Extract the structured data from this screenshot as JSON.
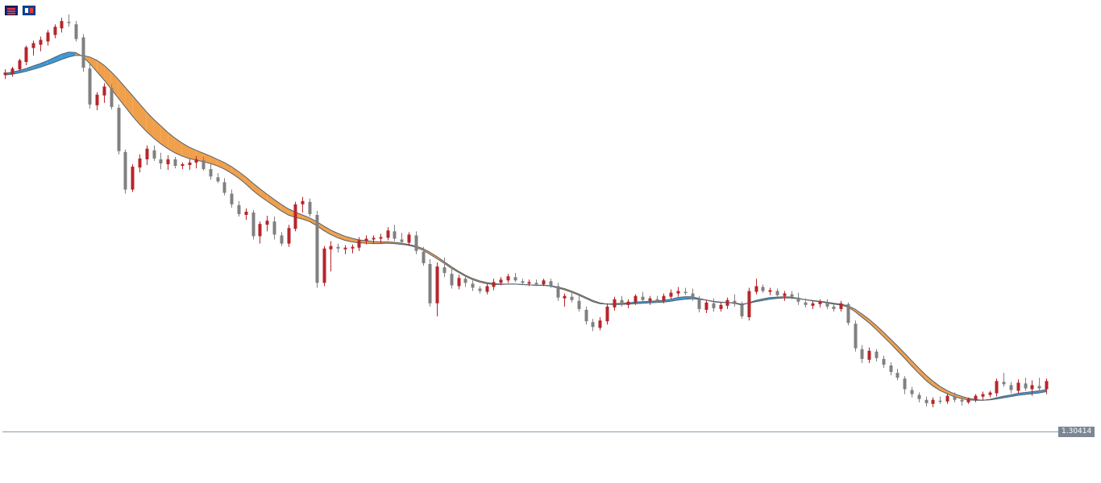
{
  "toolbar": {
    "icons": [
      {
        "name": "indicator-list-icon",
        "color": "#1a237e"
      },
      {
        "name": "template-icon",
        "color": "#0d47a1"
      }
    ]
  },
  "chart_data": {
    "type": "candlestick",
    "title": "",
    "xlabel": "",
    "ylabel": "",
    "ylim": [
      1.29,
      1.4
    ],
    "grid": false,
    "current_price": 1.30414,
    "current_price_label": "1.30414",
    "colors": {
      "bullish": "#b5262b",
      "bearish": "#808080",
      "ma_fast": "#3a9ad9",
      "ma_slow": "#f0a04b",
      "ma_line": "#56606a",
      "price_line": "#8a9ba8"
    },
    "candles": [
      [
        1.3912,
        1.3926,
        1.3902,
        1.3918
      ],
      [
        1.3914,
        1.3932,
        1.3908,
        1.3928
      ],
      [
        1.3926,
        1.3952,
        1.392,
        1.3948
      ],
      [
        1.3944,
        1.3984,
        1.3936,
        1.398
      ],
      [
        1.3978,
        1.3996,
        1.396,
        1.399
      ],
      [
        1.3986,
        1.4006,
        1.397,
        1.3998
      ],
      [
        1.3994,
        1.4022,
        1.3984,
        1.4016
      ],
      [
        1.401,
        1.4036,
        1.4002,
        1.403
      ],
      [
        1.4026,
        1.4052,
        1.4016,
        1.4044
      ],
      [
        1.4042,
        1.406,
        1.403,
        1.404
      ],
      [
        1.4036,
        1.4044,
        1.3994,
        1.4
      ],
      [
        1.4004,
        1.4012,
        1.392,
        1.393
      ],
      [
        1.3928,
        1.3942,
        1.383,
        1.384
      ],
      [
        1.3838,
        1.387,
        1.3826,
        1.3864
      ],
      [
        1.3862,
        1.3892,
        1.3844,
        1.3884
      ],
      [
        1.388,
        1.389,
        1.3828,
        1.3834
      ],
      [
        1.3832,
        1.384,
        1.3718,
        1.3726
      ],
      [
        1.3724,
        1.373,
        1.3622,
        1.3632
      ],
      [
        1.3632,
        1.3694,
        1.3626,
        1.3688
      ],
      [
        1.3686,
        1.3718,
        1.3674,
        1.3708
      ],
      [
        1.3706,
        1.374,
        1.3692,
        1.3732
      ],
      [
        1.3728,
        1.374,
        1.3702,
        1.3708
      ],
      [
        1.3706,
        1.3722,
        1.3682,
        1.3696
      ],
      [
        1.3694,
        1.3716,
        1.368,
        1.3706
      ],
      [
        1.3706,
        1.3712,
        1.3684,
        1.369
      ],
      [
        1.369,
        1.3698,
        1.3682,
        1.3694
      ],
      [
        1.3692,
        1.3706,
        1.368,
        1.3698
      ],
      [
        1.3698,
        1.3714,
        1.3684,
        1.3706
      ],
      [
        1.3704,
        1.3712,
        1.3678,
        1.3682
      ],
      [
        1.3682,
        1.3696,
        1.3656,
        1.3664
      ],
      [
        1.3662,
        1.3672,
        1.3648,
        1.3652
      ],
      [
        1.365,
        1.366,
        1.3618,
        1.3624
      ],
      [
        1.3622,
        1.3632,
        1.3588,
        1.3596
      ],
      [
        1.3594,
        1.3604,
        1.3566,
        1.3572
      ],
      [
        1.357,
        1.3586,
        1.3558,
        1.3578
      ],
      [
        1.3576,
        1.3582,
        1.351,
        1.3518
      ],
      [
        1.3518,
        1.3554,
        1.35,
        1.3548
      ],
      [
        1.3546,
        1.3568,
        1.353,
        1.3556
      ],
      [
        1.3554,
        1.3566,
        1.351,
        1.3522
      ],
      [
        1.352,
        1.3528,
        1.3494,
        1.35
      ],
      [
        1.35,
        1.3546,
        1.3492,
        1.3538
      ],
      [
        1.3536,
        1.3602,
        1.353,
        1.3596
      ],
      [
        1.3596,
        1.3614,
        1.3576,
        1.3604
      ],
      [
        1.3602,
        1.361,
        1.3566,
        1.3572
      ],
      [
        1.357,
        1.358,
        1.3392,
        1.3404
      ],
      [
        1.3404,
        1.3494,
        1.3396,
        1.3488
      ],
      [
        1.3486,
        1.3506,
        1.3432,
        1.3494
      ],
      [
        1.3492,
        1.35,
        1.3478,
        1.3488
      ],
      [
        1.3486,
        1.3496,
        1.3474,
        1.349
      ],
      [
        1.3488,
        1.3498,
        1.3476,
        1.3492
      ],
      [
        1.349,
        1.3516,
        1.3482,
        1.3508
      ],
      [
        1.3506,
        1.352,
        1.3498,
        1.3512
      ],
      [
        1.351,
        1.352,
        1.35,
        1.3514
      ],
      [
        1.3512,
        1.3524,
        1.35,
        1.3516
      ],
      [
        1.3514,
        1.354,
        1.3508,
        1.3532
      ],
      [
        1.353,
        1.3546,
        1.3506,
        1.3512
      ],
      [
        1.351,
        1.3526,
        1.3498,
        1.3504
      ],
      [
        1.3502,
        1.3528,
        1.3494,
        1.3522
      ],
      [
        1.352,
        1.353,
        1.3474,
        1.3482
      ],
      [
        1.348,
        1.3492,
        1.3446,
        1.3452
      ],
      [
        1.345,
        1.3462,
        1.3346,
        1.3354
      ],
      [
        1.3354,
        1.3454,
        1.3322,
        1.3444
      ],
      [
        1.3442,
        1.3466,
        1.3418,
        1.3428
      ],
      [
        1.3426,
        1.344,
        1.339,
        1.3398
      ],
      [
        1.3396,
        1.3424,
        1.3388,
        1.3416
      ],
      [
        1.3414,
        1.3422,
        1.3394,
        1.3404
      ],
      [
        1.3402,
        1.341,
        1.3384,
        1.3392
      ],
      [
        1.339,
        1.3396,
        1.3378,
        1.3384
      ],
      [
        1.3382,
        1.3402,
        1.3376,
        1.3396
      ],
      [
        1.3394,
        1.3414,
        1.3386,
        1.3406
      ],
      [
        1.3404,
        1.3418,
        1.3398,
        1.3412
      ],
      [
        1.341,
        1.3426,
        1.3404,
        1.342
      ],
      [
        1.3418,
        1.3428,
        1.3406,
        1.341
      ],
      [
        1.3408,
        1.3414,
        1.3398,
        1.3404
      ],
      [
        1.3402,
        1.3412,
        1.3396,
        1.3406
      ],
      [
        1.3404,
        1.3412,
        1.3396,
        1.34
      ],
      [
        1.34,
        1.3414,
        1.3396,
        1.341
      ],
      [
        1.3408,
        1.3414,
        1.3392,
        1.3396
      ],
      [
        1.3396,
        1.3404,
        1.336,
        1.3368
      ],
      [
        1.3366,
        1.3378,
        1.3346,
        1.3372
      ],
      [
        1.337,
        1.338,
        1.3356,
        1.3362
      ],
      [
        1.336,
        1.3374,
        1.3334,
        1.334
      ],
      [
        1.3338,
        1.3346,
        1.3302,
        1.331
      ],
      [
        1.3308,
        1.3316,
        1.3286,
        1.3296
      ],
      [
        1.3294,
        1.332,
        1.3288,
        1.3312
      ],
      [
        1.331,
        1.3354,
        1.3302,
        1.3346
      ],
      [
        1.3344,
        1.337,
        1.3336,
        1.3364
      ],
      [
        1.3362,
        1.3372,
        1.3346,
        1.3352
      ],
      [
        1.335,
        1.3364,
        1.3342,
        1.3358
      ],
      [
        1.3356,
        1.3376,
        1.335,
        1.3372
      ],
      [
        1.337,
        1.3382,
        1.3356,
        1.3362
      ],
      [
        1.336,
        1.3372,
        1.335,
        1.3366
      ],
      [
        1.3364,
        1.3372,
        1.3356,
        1.3362
      ],
      [
        1.336,
        1.3378,
        1.3354,
        1.3372
      ],
      [
        1.337,
        1.3388,
        1.3364,
        1.338
      ],
      [
        1.3378,
        1.3394,
        1.337,
        1.3384
      ],
      [
        1.3382,
        1.3392,
        1.3374,
        1.338
      ],
      [
        1.3378,
        1.339,
        1.336,
        1.3366
      ],
      [
        1.3364,
        1.3372,
        1.3332,
        1.334
      ],
      [
        1.3338,
        1.3362,
        1.333,
        1.3356
      ],
      [
        1.3354,
        1.3366,
        1.3334,
        1.3342
      ],
      [
        1.334,
        1.3356,
        1.3334,
        1.335
      ],
      [
        1.3348,
        1.3368,
        1.334,
        1.3362
      ],
      [
        1.336,
        1.3376,
        1.3346,
        1.3352
      ],
      [
        1.335,
        1.3358,
        1.3316,
        1.3322
      ],
      [
        1.332,
        1.3392,
        1.3312,
        1.3384
      ],
      [
        1.3382,
        1.3414,
        1.3376,
        1.3396
      ],
      [
        1.3394,
        1.34,
        1.338,
        1.3384
      ],
      [
        1.3382,
        1.3392,
        1.3374,
        1.3386
      ],
      [
        1.3384,
        1.339,
        1.3368,
        1.3374
      ],
      [
        1.3372,
        1.3384,
        1.336,
        1.3378
      ],
      [
        1.3376,
        1.3384,
        1.3364,
        1.337
      ],
      [
        1.3368,
        1.338,
        1.335,
        1.3358
      ],
      [
        1.3356,
        1.3366,
        1.3344,
        1.335
      ],
      [
        1.3348,
        1.336,
        1.334,
        1.3354
      ],
      [
        1.3352,
        1.3364,
        1.3344,
        1.3358
      ],
      [
        1.3356,
        1.3364,
        1.334,
        1.3346
      ],
      [
        1.3346,
        1.3352,
        1.3334,
        1.334
      ],
      [
        1.334,
        1.336,
        1.3334,
        1.3354
      ],
      [
        1.3352,
        1.3356,
        1.33,
        1.3306
      ],
      [
        1.3304,
        1.3312,
        1.3236,
        1.3244
      ],
      [
        1.3242,
        1.3252,
        1.3208,
        1.3218
      ],
      [
        1.3216,
        1.3246,
        1.3208,
        1.3238
      ],
      [
        1.3236,
        1.3242,
        1.3212,
        1.322
      ],
      [
        1.3218,
        1.3226,
        1.3196,
        1.3204
      ],
      [
        1.3202,
        1.321,
        1.3178,
        1.3186
      ],
      [
        1.3184,
        1.3194,
        1.3166,
        1.3172
      ],
      [
        1.317,
        1.3176,
        1.3132,
        1.3144
      ],
      [
        1.3142,
        1.315,
        1.3124,
        1.3132
      ],
      [
        1.313,
        1.3136,
        1.3112,
        1.312
      ],
      [
        1.3118,
        1.3126,
        1.3102,
        1.311
      ],
      [
        1.3108,
        1.3124,
        1.31,
        1.3118
      ],
      [
        1.3116,
        1.3126,
        1.3108,
        1.3114
      ],
      [
        1.3114,
        1.3134,
        1.3108,
        1.3128
      ],
      [
        1.3126,
        1.3136,
        1.3112,
        1.3118
      ],
      [
        1.3118,
        1.3126,
        1.3104,
        1.3114
      ],
      [
        1.3112,
        1.3124,
        1.3108,
        1.312
      ],
      [
        1.3118,
        1.3132,
        1.3112,
        1.3128
      ],
      [
        1.3126,
        1.3138,
        1.3118,
        1.3132
      ],
      [
        1.313,
        1.314,
        1.3124,
        1.3136
      ],
      [
        1.3134,
        1.317,
        1.3126,
        1.3164
      ],
      [
        1.3162,
        1.3184,
        1.315,
        1.3156
      ],
      [
        1.3154,
        1.3162,
        1.3134,
        1.3142
      ],
      [
        1.314,
        1.3168,
        1.3134,
        1.316
      ],
      [
        1.3158,
        1.3172,
        1.314,
        1.3146
      ],
      [
        1.3144,
        1.3166,
        1.3128,
        1.3154
      ],
      [
        1.3152,
        1.3172,
        1.3136,
        1.3146
      ],
      [
        1.3144,
        1.317,
        1.3132,
        1.3164
      ]
    ],
    "ma_fast": [
      1.3916,
      1.3919,
      1.3923,
      1.3928,
      1.3934,
      1.394,
      1.3947,
      1.3955,
      1.3963,
      1.3968,
      1.3967,
      1.3957,
      1.394,
      1.392,
      1.39,
      1.3878,
      1.3856,
      1.3834,
      1.3812,
      1.3792,
      1.3774,
      1.3758,
      1.3744,
      1.3732,
      1.3722,
      1.3714,
      1.3708,
      1.3704,
      1.37,
      1.3696,
      1.369,
      1.3682,
      1.3672,
      1.366,
      1.3646,
      1.363,
      1.3616,
      1.3604,
      1.3592,
      1.358,
      1.357,
      1.3564,
      1.356,
      1.3554,
      1.3544,
      1.3532,
      1.3522,
      1.3514,
      1.3508,
      1.3504,
      1.3502,
      1.3501,
      1.35,
      1.35,
      1.3501,
      1.35,
      1.3498,
      1.3496,
      1.3491,
      1.3484,
      1.3474,
      1.3463,
      1.3452,
      1.344,
      1.343,
      1.342,
      1.3412,
      1.3406,
      1.3402,
      1.34,
      1.34,
      1.3401,
      1.3401,
      1.34,
      1.3399,
      1.3398,
      1.3398,
      1.3396,
      1.3392,
      1.3387,
      1.3381,
      1.3374,
      1.3366,
      1.3358,
      1.3353,
      1.3352,
      1.3353,
      1.3354,
      1.3355,
      1.3357,
      1.3358,
      1.3359,
      1.336,
      1.3361,
      1.3364,
      1.3368,
      1.337,
      1.337,
      1.3366,
      1.3362,
      1.3358,
      1.3356,
      1.3356,
      1.3354,
      1.335,
      1.3355,
      1.3361,
      1.3365,
      1.3368,
      1.3369,
      1.337,
      1.3369,
      1.3366,
      1.3363,
      1.336,
      1.3358,
      1.3355,
      1.3352,
      1.335,
      1.3345,
      1.3334,
      1.332,
      1.3306,
      1.329,
      1.3273,
      1.3256,
      1.3238,
      1.322,
      1.3201,
      1.3183,
      1.3166,
      1.3152,
      1.3141,
      1.3133,
      1.3126,
      1.3121,
      1.3118,
      1.3117,
      1.3117,
      1.3119,
      1.3123,
      1.3127,
      1.313,
      1.3134,
      1.3136,
      1.3138,
      1.314,
      1.3143
    ],
    "ma_slow": [
      1.3912,
      1.3914,
      1.3917,
      1.3921,
      1.3926,
      1.3931,
      1.3937,
      1.3943,
      1.395,
      1.3956,
      1.396,
      1.396,
      1.3956,
      1.3948,
      1.3936,
      1.392,
      1.3902,
      1.3882,
      1.3862,
      1.3842,
      1.3822,
      1.3804,
      1.3788,
      1.3772,
      1.3758,
      1.3746,
      1.3736,
      1.3728,
      1.3721,
      1.3714,
      1.3706,
      1.3698,
      1.3688,
      1.3676,
      1.3663,
      1.3648,
      1.3634,
      1.3621,
      1.3608,
      1.3596,
      1.3585,
      1.3577,
      1.357,
      1.3563,
      1.3554,
      1.3543,
      1.3533,
      1.3525,
      1.3518,
      1.3513,
      1.3509,
      1.3507,
      1.3505,
      1.3504,
      1.3504,
      1.3503,
      1.3501,
      1.3498,
      1.3494,
      1.3488,
      1.3479,
      1.3468,
      1.3456,
      1.3444,
      1.3433,
      1.3423,
      1.3415,
      1.3409,
      1.3405,
      1.3402,
      1.3401,
      1.3401,
      1.3401,
      1.34,
      1.3399,
      1.3398,
      1.3398,
      1.3397,
      1.3394,
      1.339,
      1.3384,
      1.3377,
      1.3369,
      1.3361,
      1.3355,
      1.3352,
      1.3351,
      1.3351,
      1.3352,
      1.3353,
      1.3354,
      1.3355,
      1.3356,
      1.3357,
      1.3359,
      1.3362,
      1.3364,
      1.3365,
      1.3364,
      1.3362,
      1.3359,
      1.3357,
      1.3356,
      1.3355,
      1.3352,
      1.3354,
      1.3358,
      1.3361,
      1.3364,
      1.3366,
      1.3367,
      1.3367,
      1.3365,
      1.3363,
      1.3361,
      1.3359,
      1.3357,
      1.3354,
      1.3352,
      1.3348,
      1.334,
      1.3328,
      1.3315,
      1.33,
      1.3284,
      1.3267,
      1.325,
      1.3232,
      1.3214,
      1.3196,
      1.3179,
      1.3164,
      1.3151,
      1.3141,
      1.3133,
      1.3127,
      1.3122,
      1.3119,
      1.3117,
      1.3118,
      1.312,
      1.3123,
      1.3126,
      1.3129,
      1.3131,
      1.3133,
      1.3135,
      1.3138
    ]
  }
}
